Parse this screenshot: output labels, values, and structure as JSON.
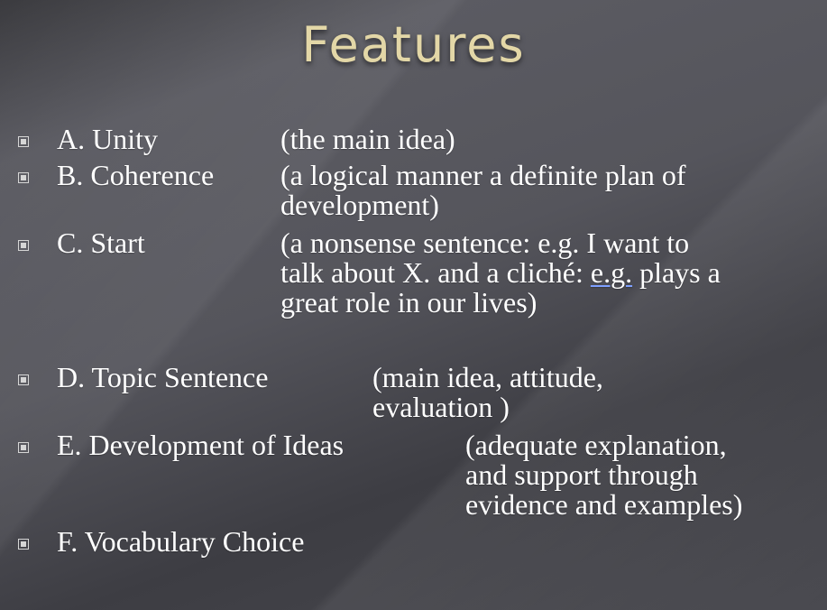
{
  "slide": {
    "title": "Features",
    "items": [
      {
        "label": "A. Unity",
        "desc_lines": [
          "(the main idea)"
        ]
      },
      {
        "label": "B. Coherence",
        "desc_lines": [
          "(a logical manner a definite plan of",
          "development)"
        ]
      },
      {
        "label": "C. Start",
        "desc_lines": [
          "(a nonsense sentence: e.g. I want to",
          "talk about X. and a cliché:",
          "e.g.",
          "plays a",
          "great role in our lives)"
        ]
      },
      {
        "label": "D. Topic Sentence",
        "desc_lines": [
          "(main idea, attitude,",
          "evaluation )"
        ]
      },
      {
        "label": "E. Development of Ideas",
        "desc_lines": [
          "(adequate explanation,",
          "and support through",
          "evidence and examples)"
        ]
      },
      {
        "label": "F. Vocabulary Choice",
        "desc_lines": []
      }
    ]
  }
}
